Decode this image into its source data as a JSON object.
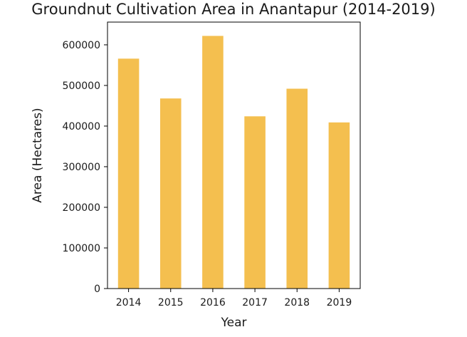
{
  "chart_data": {
    "type": "bar",
    "title": "Groundnut Cultivation Area in Anantapur (2014-2019)",
    "xlabel": "Year",
    "ylabel": "Area (Hectares)",
    "categories": [
      "2014",
      "2015",
      "2016",
      "2017",
      "2018",
      "2019"
    ],
    "values": [
      566000,
      468000,
      622000,
      424000,
      492000,
      409000
    ],
    "ylim": [
      0,
      656000
    ],
    "yticks": [
      0,
      100000,
      200000,
      300000,
      400000,
      500000,
      600000
    ],
    "ytick_labels": [
      "0",
      "100000",
      "200000",
      "300000",
      "400000",
      "500000",
      "600000"
    ],
    "grid": false,
    "legend": "none",
    "bar_color": "#f4bf4f"
  }
}
